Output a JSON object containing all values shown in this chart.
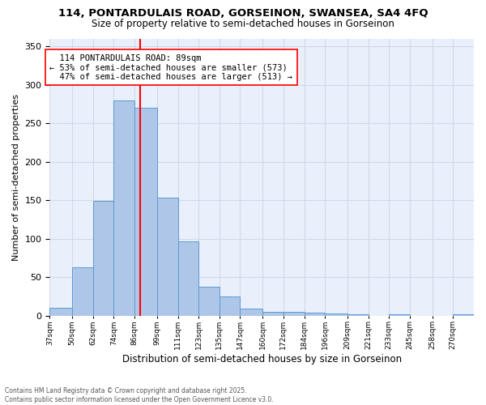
{
  "title1": "114, PONTARDULAIS ROAD, GORSEINON, SWANSEA, SA4 4FQ",
  "title2": "Size of property relative to semi-detached houses in Gorseinon",
  "xlabel": "Distribution of semi-detached houses by size in Gorseinon",
  "ylabel": "Number of semi-detached properties",
  "property_label": "114 PONTARDULAIS ROAD: 89sqm",
  "pct_smaller": 53,
  "count_smaller": 573,
  "pct_larger": 47,
  "count_larger": 513,
  "bins": [
    37,
    50,
    62,
    74,
    86,
    99,
    111,
    123,
    135,
    147,
    160,
    172,
    184,
    196,
    209,
    221,
    233,
    245,
    258,
    270,
    282
  ],
  "bar_heights": [
    10,
    63,
    149,
    279,
    270,
    153,
    96,
    37,
    25,
    9,
    5,
    5,
    4,
    3,
    2,
    0,
    2,
    0,
    0,
    2
  ],
  "bar_color": "#aec6e8",
  "bar_edge_color": "#5b9bd5",
  "vline_x": 89,
  "vline_color": "red",
  "ylim": [
    0,
    360
  ],
  "yticks": [
    0,
    50,
    100,
    150,
    200,
    250,
    300,
    350
  ],
  "grid_color": "#d0d8e8",
  "bg_color": "#eaf0fb",
  "footer1": "Contains HM Land Registry data © Crown copyright and database right 2025.",
  "footer2": "Contains public sector information licensed under the Open Government Licence v3.0."
}
